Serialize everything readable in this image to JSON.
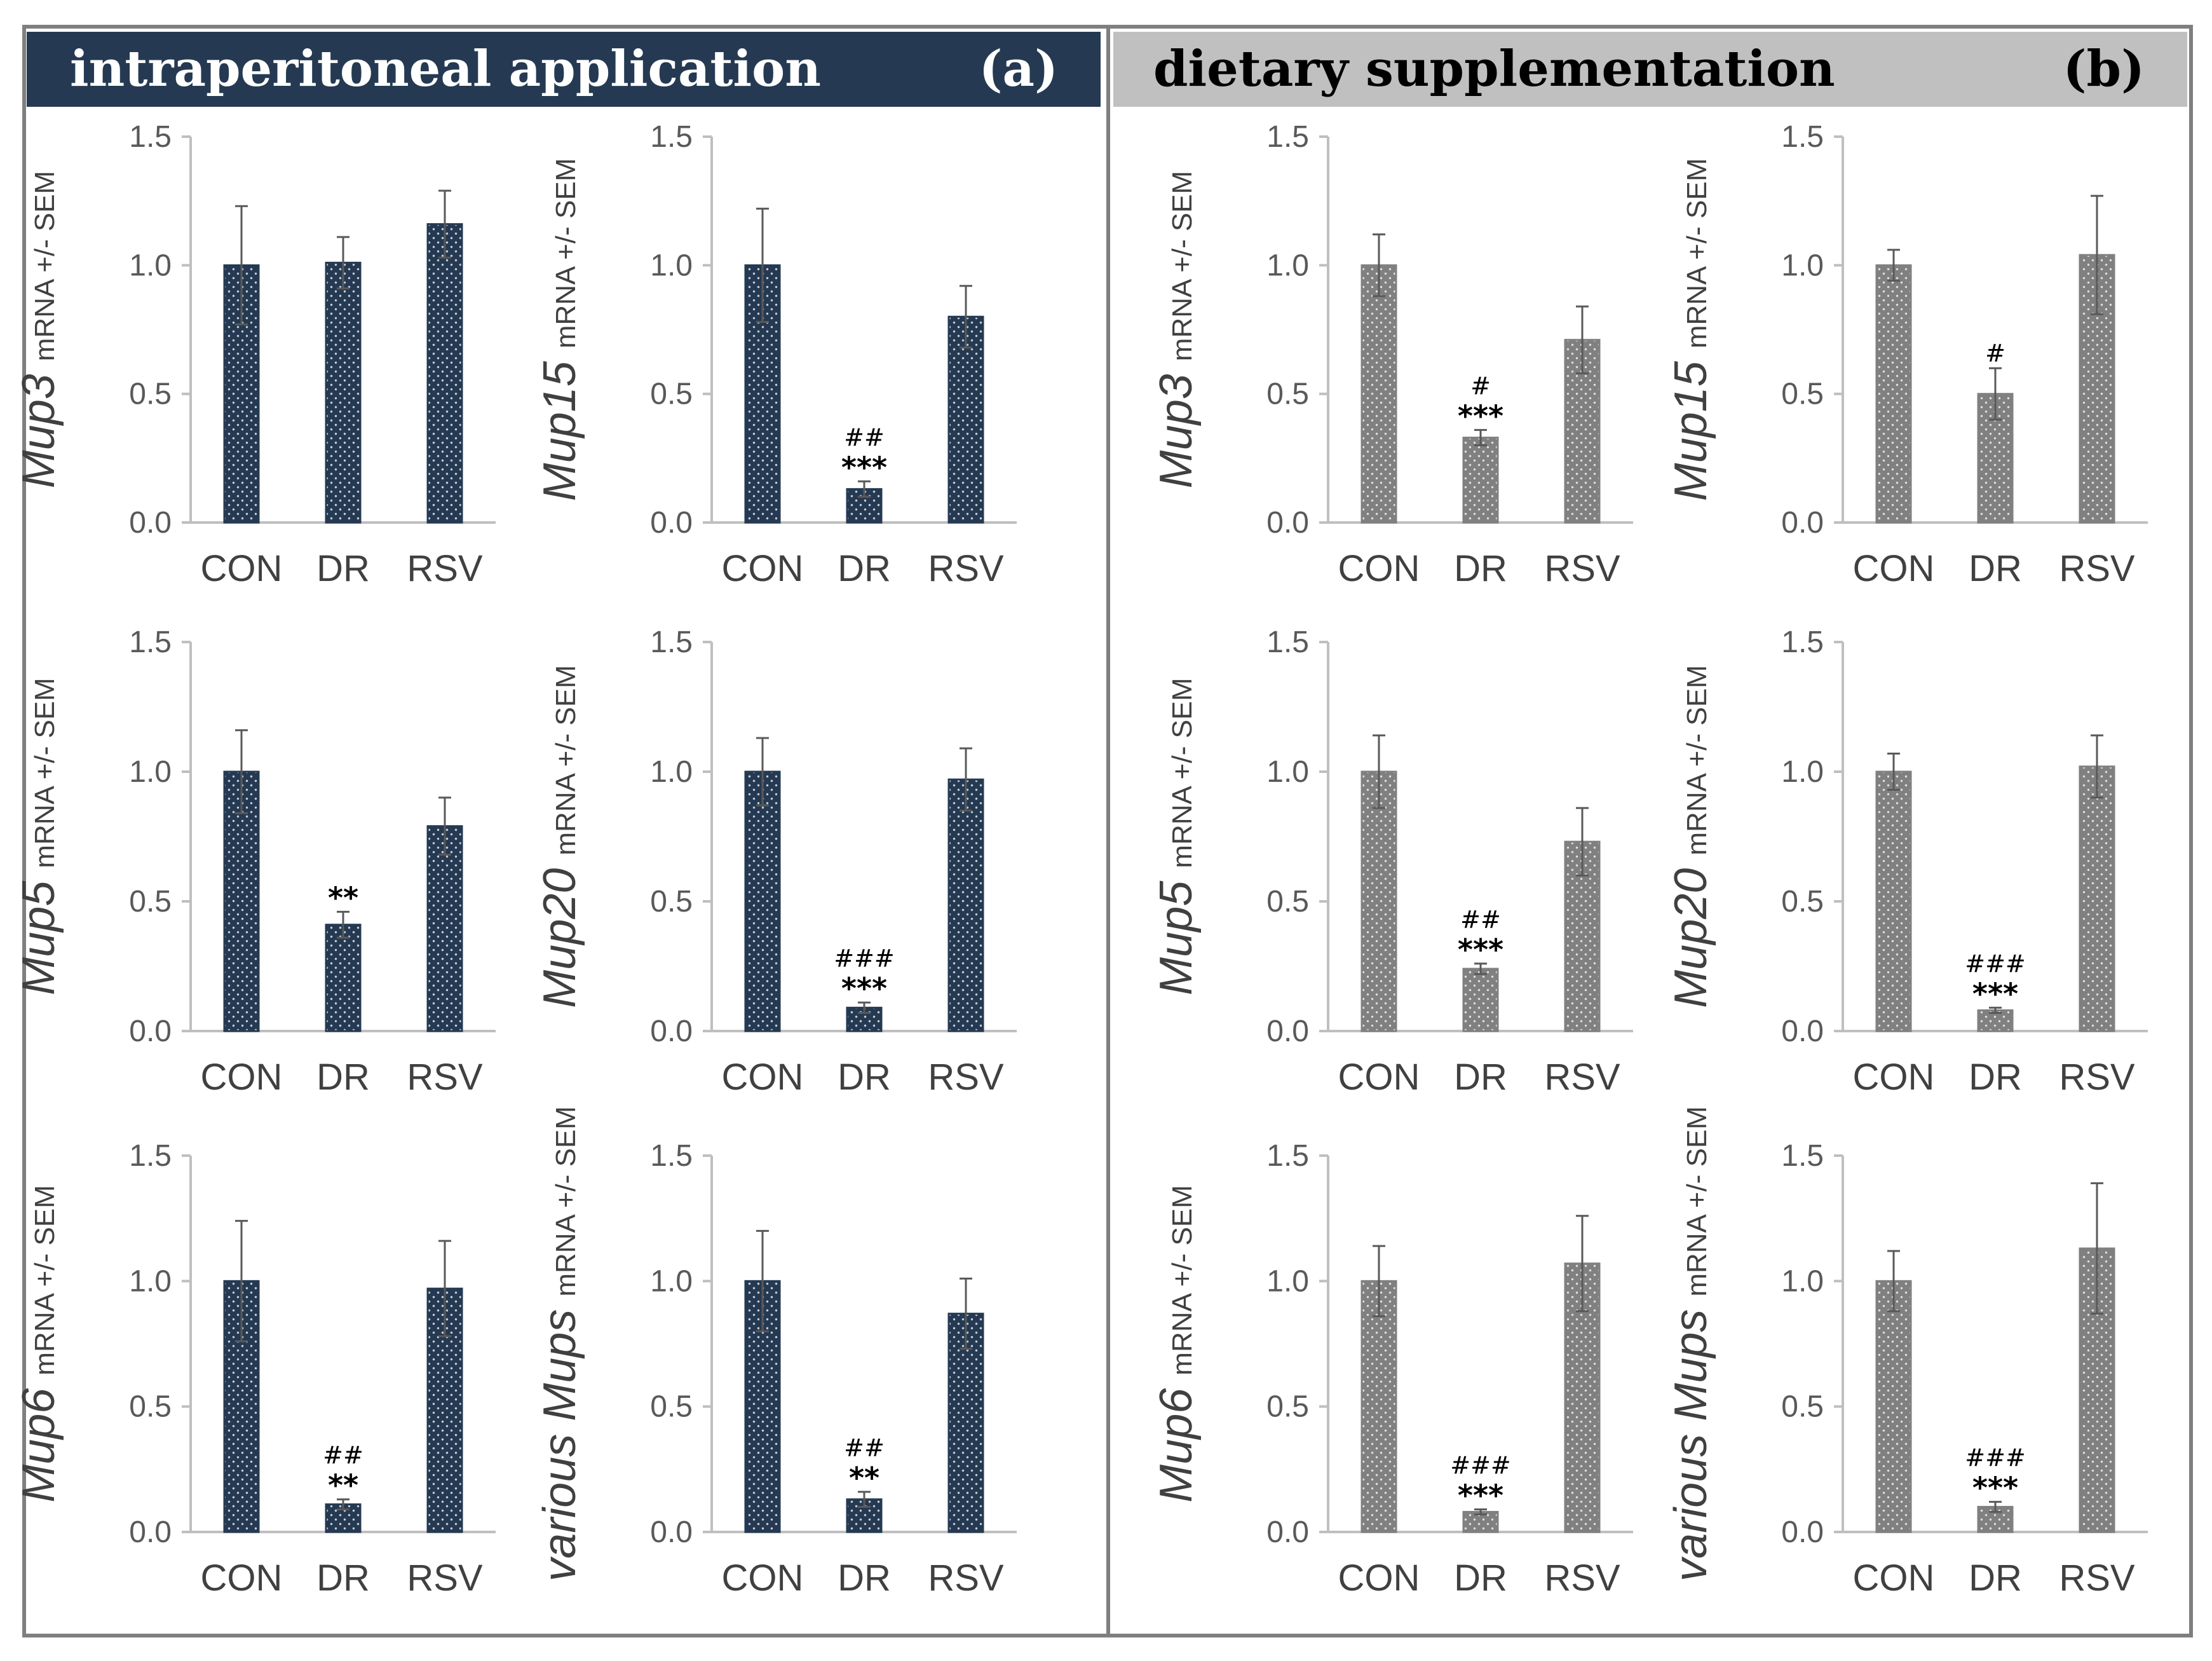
{
  "figure": {
    "panels": [
      {
        "title": "intraperitoneal application",
        "letter": "(a)",
        "header_bg": "#253a52",
        "header_fg": "#ffffff",
        "bar_color": "#253a52"
      },
      {
        "title": "dietary supplementation",
        "letter": "(b)",
        "header_bg": "#c0c0c0",
        "header_fg": "#000000",
        "bar_color": "#808080"
      }
    ]
  },
  "chart_data": [
    {
      "panel": "a",
      "type": "bar",
      "gene": "Mup3",
      "ylabel_rest": "mRNA +/- SEM",
      "categories": [
        "CON",
        "DR",
        "RSV"
      ],
      "values": [
        1.0,
        1.01,
        1.16
      ],
      "sem": [
        0.23,
        0.1,
        0.13
      ],
      "sig_stars": [
        "",
        "",
        ""
      ],
      "sig_hash": [
        "",
        "",
        ""
      ],
      "ylim": [
        0,
        1.5
      ],
      "yticks": [
        "0.0",
        "0.5",
        "1.0",
        "1.5"
      ]
    },
    {
      "panel": "a",
      "type": "bar",
      "gene": "Mup15",
      "ylabel_rest": "mRNA +/- SEM",
      "categories": [
        "CON",
        "DR",
        "RSV"
      ],
      "values": [
        1.0,
        0.13,
        0.8
      ],
      "sem": [
        0.22,
        0.03,
        0.12
      ],
      "sig_stars": [
        "",
        "***",
        ""
      ],
      "sig_hash": [
        "",
        "##",
        ""
      ],
      "ylim": [
        0,
        1.5
      ],
      "yticks": [
        "0.0",
        "0.5",
        "1.0",
        "1.5"
      ]
    },
    {
      "panel": "a",
      "type": "bar",
      "gene": "Mup5",
      "ylabel_rest": "mRNA  +/- SEM",
      "categories": [
        "CON",
        "DR",
        "RSV"
      ],
      "values": [
        1.0,
        0.41,
        0.79
      ],
      "sem": [
        0.16,
        0.05,
        0.11
      ],
      "sig_stars": [
        "",
        "**",
        ""
      ],
      "sig_hash": [
        "",
        "",
        ""
      ],
      "ylim": [
        0,
        1.5
      ],
      "yticks": [
        "0.0",
        "0.5",
        "1.0",
        "1.5"
      ]
    },
    {
      "panel": "a",
      "type": "bar",
      "gene": "Mup20",
      "ylabel_rest": "mRNA  +/- SEM",
      "categories": [
        "CON",
        "DR",
        "RSV"
      ],
      "values": [
        1.0,
        0.09,
        0.97
      ],
      "sem": [
        0.13,
        0.02,
        0.12
      ],
      "sig_stars": [
        "",
        "***",
        ""
      ],
      "sig_hash": [
        "",
        "###",
        ""
      ],
      "ylim": [
        0,
        1.5
      ],
      "yticks": [
        "0.0",
        "0.5",
        "1.0",
        "1.5"
      ]
    },
    {
      "panel": "a",
      "type": "bar",
      "gene": "Mup6",
      "ylabel_rest": "mRNA +/- SEM",
      "categories": [
        "CON",
        "DR",
        "RSV"
      ],
      "values": [
        1.0,
        0.11,
        0.97
      ],
      "sem": [
        0.24,
        0.02,
        0.19
      ],
      "sig_stars": [
        "",
        "**",
        ""
      ],
      "sig_hash": [
        "",
        "##",
        ""
      ],
      "ylim": [
        0,
        1.5
      ],
      "yticks": [
        "0.0",
        "0.5",
        "1.0",
        "1.5"
      ]
    },
    {
      "panel": "a",
      "type": "bar",
      "gene": "various Mups",
      "ylabel_rest": "mRNA +/- SEM",
      "categories": [
        "CON",
        "DR",
        "RSV"
      ],
      "values": [
        1.0,
        0.13,
        0.87
      ],
      "sem": [
        0.2,
        0.03,
        0.14
      ],
      "sig_stars": [
        "",
        "**",
        ""
      ],
      "sig_hash": [
        "",
        "##",
        ""
      ],
      "ylim": [
        0,
        1.5
      ],
      "yticks": [
        "0.0",
        "0.5",
        "1.0",
        "1.5"
      ]
    },
    {
      "panel": "b",
      "type": "bar",
      "gene": "Mup3",
      "ylabel_rest": "mRNA +/- SEM",
      "categories": [
        "CON",
        "DR",
        "RSV"
      ],
      "values": [
        1.0,
        0.33,
        0.71
      ],
      "sem": [
        0.12,
        0.03,
        0.13
      ],
      "sig_stars": [
        "",
        "***",
        ""
      ],
      "sig_hash": [
        "",
        "#",
        ""
      ],
      "ylim": [
        0,
        1.5
      ],
      "yticks": [
        "0.0",
        "0.5",
        "1.0",
        "1.5"
      ]
    },
    {
      "panel": "b",
      "type": "bar",
      "gene": "Mup15",
      "ylabel_rest": "mRNA +/- SEM",
      "categories": [
        "CON",
        "DR",
        "RSV"
      ],
      "values": [
        1.0,
        0.5,
        1.04
      ],
      "sem": [
        0.06,
        0.1,
        0.23
      ],
      "sig_stars": [
        "",
        "",
        ""
      ],
      "sig_hash": [
        "",
        "#",
        ""
      ],
      "ylim": [
        0,
        1.5
      ],
      "yticks": [
        "0.0",
        "0.5",
        "1.0",
        "1.5"
      ]
    },
    {
      "panel": "b",
      "type": "bar",
      "gene": "Mup5",
      "ylabel_rest": "mRNA  +/- SEM",
      "categories": [
        "CON",
        "DR",
        "RSV"
      ],
      "values": [
        1.0,
        0.24,
        0.73
      ],
      "sem": [
        0.14,
        0.02,
        0.13
      ],
      "sig_stars": [
        "",
        "***",
        ""
      ],
      "sig_hash": [
        "",
        "##",
        ""
      ],
      "ylim": [
        0,
        1.5
      ],
      "yticks": [
        "0.0",
        "0.5",
        "1.0",
        "1.5"
      ]
    },
    {
      "panel": "b",
      "type": "bar",
      "gene": "Mup20",
      "ylabel_rest": "mRNA  +/- SEM",
      "categories": [
        "CON",
        "DR",
        "RSV"
      ],
      "values": [
        1.0,
        0.08,
        1.02
      ],
      "sem": [
        0.07,
        0.01,
        0.12
      ],
      "sig_stars": [
        "",
        "***",
        ""
      ],
      "sig_hash": [
        "",
        "###",
        ""
      ],
      "ylim": [
        0,
        1.5
      ],
      "yticks": [
        "0.0",
        "0.5",
        "1.0",
        "1.5"
      ]
    },
    {
      "panel": "b",
      "type": "bar",
      "gene": "Mup6",
      "ylabel_rest": "mRNA +/- SEM",
      "categories": [
        "CON",
        "DR",
        "RSV"
      ],
      "values": [
        1.0,
        0.08,
        1.07
      ],
      "sem": [
        0.14,
        0.01,
        0.19
      ],
      "sig_stars": [
        "",
        "***",
        ""
      ],
      "sig_hash": [
        "",
        "###",
        ""
      ],
      "ylim": [
        0,
        1.5
      ],
      "yticks": [
        "0.0",
        "0.5",
        "1.0",
        "1.5"
      ]
    },
    {
      "panel": "b",
      "type": "bar",
      "gene": "various Mups",
      "ylabel_rest": "mRNA +/- SEM",
      "categories": [
        "CON",
        "DR",
        "RSV"
      ],
      "values": [
        1.0,
        0.1,
        1.13
      ],
      "sem": [
        0.12,
        0.02,
        0.26
      ],
      "sig_stars": [
        "",
        "***",
        ""
      ],
      "sig_hash": [
        "",
        "###",
        ""
      ],
      "ylim": [
        0,
        1.5
      ],
      "yticks": [
        "0.0",
        "0.5",
        "1.0",
        "1.5"
      ]
    }
  ]
}
